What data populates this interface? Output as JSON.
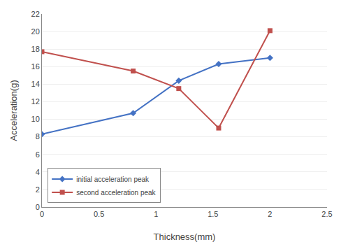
{
  "chart_data": {
    "type": "line",
    "x_label": "Thickness(mm)",
    "y_label": "Acceleration(g)",
    "x": [
      0,
      0.8,
      1.2,
      1.55,
      2.0
    ],
    "series": [
      {
        "name": "initial acceleration peak",
        "color": "#4472C4",
        "marker": "diamond",
        "values": [
          8.3,
          10.7,
          14.4,
          16.3,
          17.0
        ]
      },
      {
        "name": "second acceleration peak",
        "color": "#C0504D",
        "marker": "square",
        "values": [
          17.7,
          15.5,
          13.5,
          9.0,
          20.1
        ]
      }
    ],
    "xlim": [
      0,
      2.5
    ],
    "ylim": [
      0,
      22
    ],
    "xticks": [
      0,
      0.5,
      1,
      1.5,
      2,
      2.5
    ],
    "yticks": [
      0,
      2,
      4,
      6,
      8,
      10,
      12,
      14,
      16,
      18,
      20,
      22
    ],
    "grid": "y",
    "legend": "lower left"
  }
}
